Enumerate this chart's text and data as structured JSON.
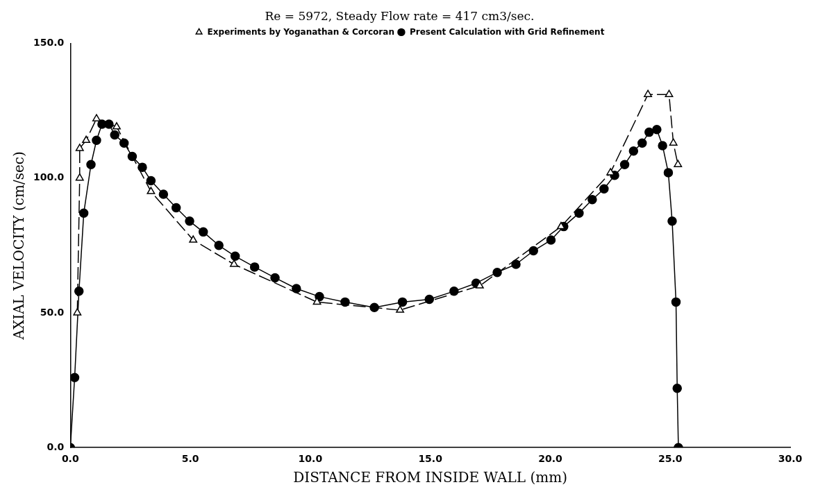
{
  "chart_data": {
    "type": "line",
    "title": "Re = 5972, Steady Flow rate = 417 cm3/sec.",
    "xlabel": "DISTANCE FROM INSIDE WALL (mm)",
    "ylabel": "AXIAL VELOCITY (cm/sec)",
    "xlim": [
      0,
      30
    ],
    "ylim": [
      0,
      150
    ],
    "xticks": [
      {
        "value": 0,
        "label": "0.0"
      },
      {
        "value": 5,
        "label": "5.0"
      },
      {
        "value": 10,
        "label": "10.0"
      },
      {
        "value": 15,
        "label": "15.0"
      },
      {
        "value": 20,
        "label": "20.0"
      },
      {
        "value": 25,
        "label": "25.0"
      },
      {
        "value": 30,
        "label": "30.0"
      }
    ],
    "yticks": [
      {
        "value": 0,
        "label": "0.0"
      },
      {
        "value": 50,
        "label": "50.0"
      },
      {
        "value": 100,
        "label": "100.0"
      },
      {
        "value": 150,
        "label": "150.0"
      }
    ],
    "grid": false,
    "legend": "top",
    "series": [
      {
        "name": "Present Calculation with Grid Refinement",
        "color": "#000000",
        "marker": "circle",
        "line_style": "solid",
        "x": [
          0,
          0.18,
          0.36,
          0.56,
          0.86,
          1.09,
          1.32,
          1.61,
          1.85,
          2.24,
          2.58,
          3.0,
          3.36,
          3.88,
          4.41,
          4.97,
          5.54,
          6.19,
          6.87,
          7.68,
          8.53,
          9.42,
          10.38,
          11.45,
          12.67,
          13.84,
          14.96,
          15.99,
          16.91,
          17.79,
          18.57,
          19.3,
          20.03,
          20.56,
          21.2,
          21.75,
          22.24,
          22.68,
          23.1,
          23.47,
          23.83,
          24.12,
          24.44,
          24.68,
          24.92,
          25.08,
          25.24,
          25.29,
          25.34
        ],
        "values": [
          0,
          26,
          58,
          87,
          105,
          114,
          120,
          120,
          116,
          113,
          108,
          104,
          99,
          94,
          89,
          84,
          80,
          75,
          71,
          67,
          63,
          59,
          56,
          54,
          52,
          54,
          55,
          58,
          61,
          65,
          68,
          73,
          77,
          82,
          87,
          92,
          96,
          101,
          105,
          110,
          113,
          117,
          118,
          112,
          102,
          84,
          54,
          22,
          0
        ]
      },
      {
        "name": "Experiments by Yoganathan & Corcoran",
        "color": "#000000",
        "marker": "triangle",
        "line_style": "dashed",
        "x": [
          0.29,
          0.39,
          0.39,
          0.66,
          1.09,
          1.93,
          3.36,
          5.12,
          6.82,
          10.28,
          13.74,
          17.06,
          20.45,
          22.51,
          24.07,
          24.95,
          25.13,
          25.32
        ],
        "values": [
          50,
          100,
          111,
          114,
          122,
          119,
          95,
          77,
          68,
          54,
          51,
          60,
          82,
          102,
          131,
          131,
          113,
          105
        ]
      }
    ]
  }
}
